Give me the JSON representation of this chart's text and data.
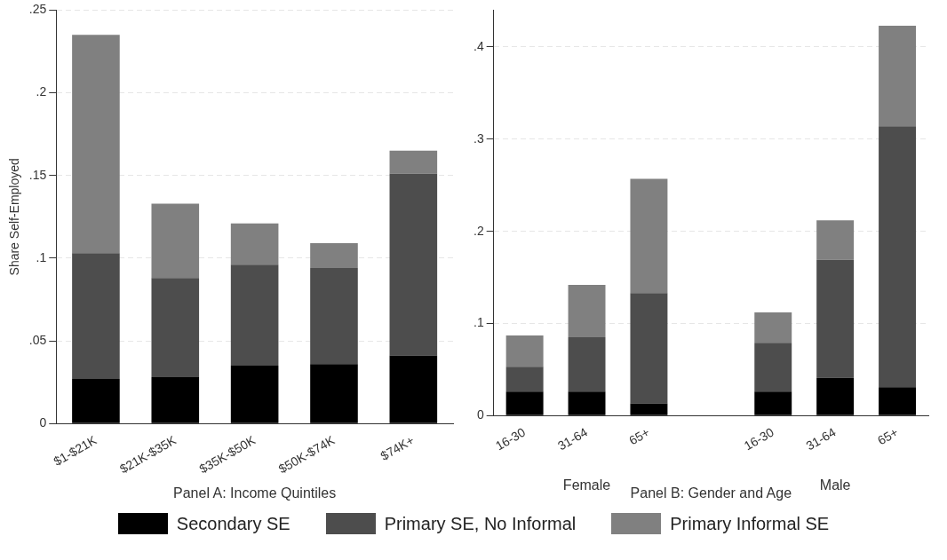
{
  "chart_data": [
    {
      "type": "bar",
      "stacked": true,
      "ylabel": "Share Self-Employed",
      "xlabel": "Panel A: Income Quintiles",
      "categories": [
        "$1-$21K",
        "$21K-$35K",
        "$35K-$50K",
        "$50K-$74K",
        "$74K+"
      ],
      "series": [
        {
          "name": "Secondary SE",
          "color": "#000000",
          "values": [
            0.027,
            0.028,
            0.035,
            0.036,
            0.041
          ]
        },
        {
          "name": "Primary SE, No Informal",
          "color": "#4d4d4d",
          "values": [
            0.076,
            0.06,
            0.061,
            0.058,
            0.11
          ]
        },
        {
          "name": "Primary Informal SE",
          "color": "#808080",
          "values": [
            0.132,
            0.045,
            0.025,
            0.015,
            0.014
          ]
        }
      ],
      "ylim": [
        0,
        0.25
      ],
      "yticks": [
        {
          "value": 0,
          "label": "0"
        },
        {
          "value": 0.05,
          "label": ".05"
        },
        {
          "value": 0.1,
          "label": ".1"
        },
        {
          "value": 0.15,
          "label": ".15"
        },
        {
          "value": 0.2,
          "label": ".2"
        },
        {
          "value": 0.25,
          "label": ".25"
        }
      ],
      "grid": "y",
      "legend": "bottom"
    },
    {
      "type": "bar",
      "stacked": true,
      "xlabel": "Panel B: Gender and Age",
      "categories": [
        "16-30",
        "31-64",
        "65+",
        null,
        "16-30",
        "31-64",
        "65+"
      ],
      "annotations": [
        "Female",
        "Male"
      ],
      "series": [
        {
          "color": "#000000",
          "values": [
            0.026,
            0.026,
            0.013,
            null,
            0.026,
            0.041,
            0.031
          ]
        },
        {
          "color": "#4d4d4d",
          "values": [
            0.027,
            0.059,
            0.12,
            null,
            0.053,
            0.128,
            0.283
          ]
        },
        {
          "color": "#808080",
          "values": [
            0.034,
            0.057,
            0.124,
            null,
            0.033,
            0.043,
            0.109
          ]
        }
      ],
      "ylim": [
        0,
        0.44
      ],
      "yticks": [
        {
          "value": 0,
          "label": "0"
        },
        {
          "value": 0.1,
          "label": ".1"
        },
        {
          "value": 0.2,
          "label": ".2"
        },
        {
          "value": 0.3,
          "label": ".3"
        },
        {
          "value": 0.4,
          "label": ".4"
        }
      ],
      "grid": "y"
    }
  ]
}
